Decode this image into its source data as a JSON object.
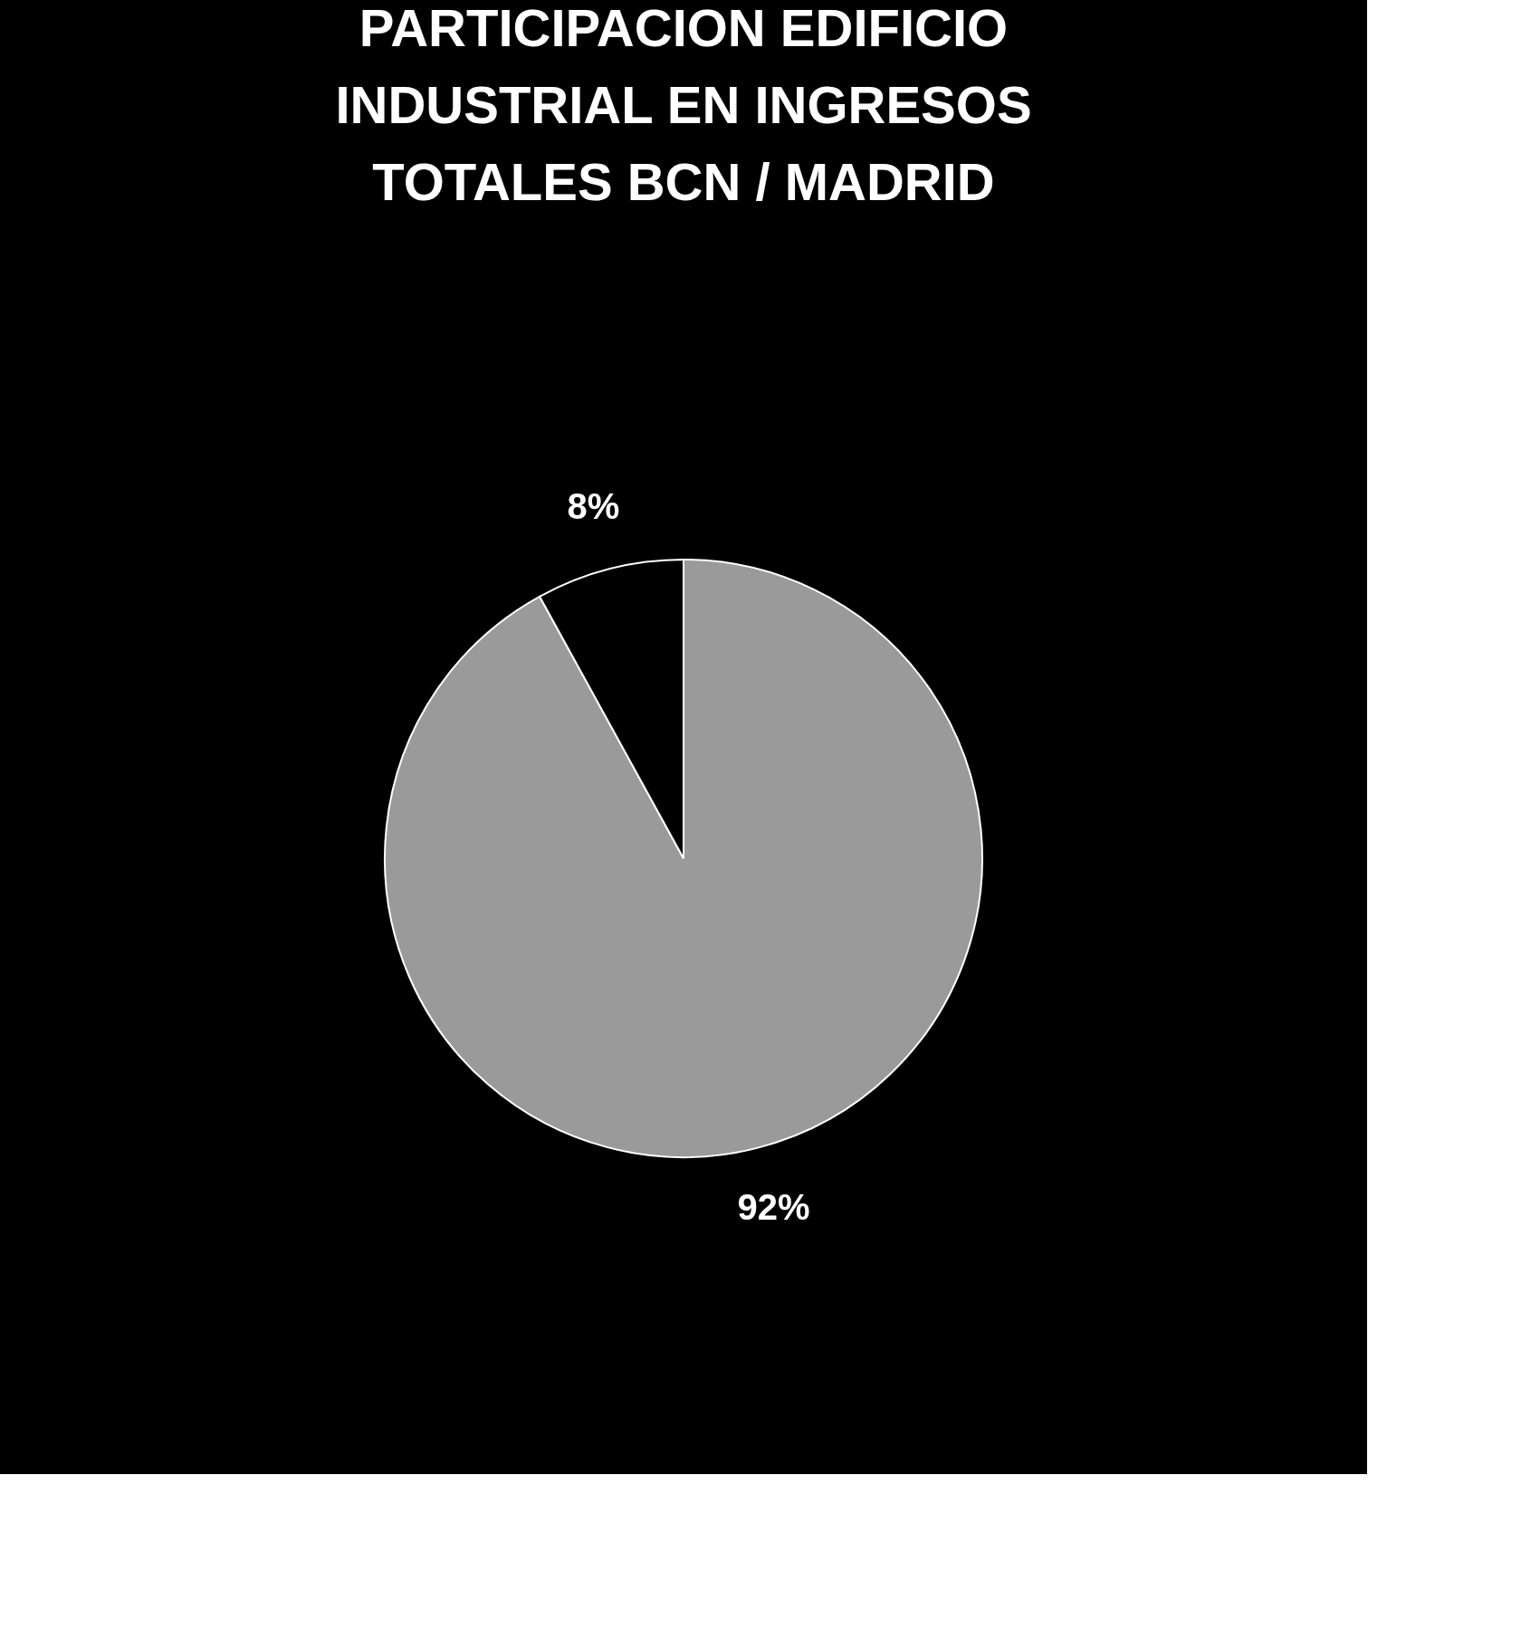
{
  "chart_data": {
    "type": "pie",
    "title": [
      "PARTICIPACION EDIFICIO",
      "INDUSTRIAL EN INGRESOS",
      "TOTALES BCN  /  MADRID"
    ],
    "categories": [
      null,
      null
    ],
    "values": [
      92,
      8
    ],
    "colors": [
      "#9a9a9a",
      "#000000"
    ],
    "value_labels": [
      "92%",
      "8%"
    ],
    "legend": false
  }
}
